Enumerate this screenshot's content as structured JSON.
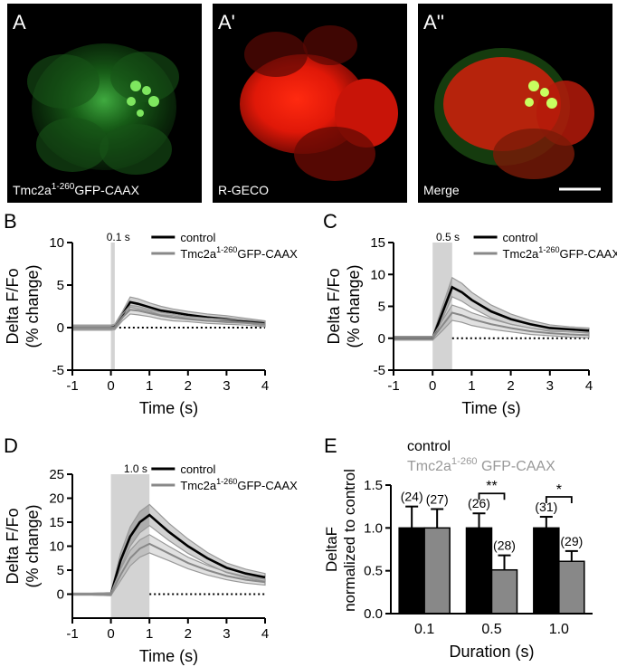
{
  "image_panels": [
    {
      "letter": "A",
      "caption_parts": [
        "Tmc2a",
        "1-260",
        "GFP-CAAX"
      ],
      "channel": "green"
    },
    {
      "letter": "A'",
      "caption_parts": [
        "R-GECO",
        "",
        ""
      ],
      "channel": "red"
    },
    {
      "letter": "A''",
      "caption_parts": [
        "Merge",
        "",
        ""
      ],
      "channel": "merge"
    }
  ],
  "colors": {
    "control": "#000000",
    "mutant": "#888888",
    "stim": "#d3d3d3",
    "green": "#2fb12f",
    "red": "#ff1a0a"
  },
  "common": {
    "ylabel_1": "Delta F/Fo",
    "ylabel_2": "(% change)",
    "xlabel": "Time (s)",
    "legend_control": "control",
    "legend_mutant_prefix": "Tmc2a",
    "legend_mutant_sup": "1-260",
    "legend_mutant_suffix": "GFP-CAAX"
  },
  "chart_data": [
    {
      "panel": "B",
      "type": "line",
      "stim_label": "0.1 s",
      "stim": [
        0,
        0.1
      ],
      "xlim": [
        -1,
        4
      ],
      "ylim": [
        -5,
        10
      ],
      "xticks": [
        "-1",
        "0",
        "1",
        "2",
        "3",
        "4"
      ],
      "yticks": [
        "-5",
        "0",
        "5",
        "10"
      ],
      "x": [
        -1,
        -0.5,
        0,
        0.1,
        0.3,
        0.5,
        0.7,
        1.0,
        1.3,
        1.6,
        2.0,
        2.5,
        3.0,
        3.5,
        4.0
      ],
      "series": [
        {
          "name": "control",
          "values": [
            0,
            0,
            0,
            0.1,
            1.5,
            3.0,
            2.8,
            2.4,
            2.0,
            1.8,
            1.5,
            1.2,
            1.0,
            0.8,
            0.5
          ],
          "sem": [
            0.3,
            0.3,
            0.3,
            0.3,
            0.4,
            0.6,
            0.6,
            0.5,
            0.5,
            0.4,
            0.4,
            0.4,
            0.4,
            0.3,
            0.3
          ]
        },
        {
          "name": "Tmc2a1-260GFP-CAAX",
          "values": [
            0,
            0,
            0,
            0.05,
            1.2,
            2.1,
            2.0,
            1.7,
            1.4,
            1.2,
            1.0,
            0.8,
            0.7,
            0.6,
            0.4
          ],
          "sem": [
            0.3,
            0.3,
            0.3,
            0.3,
            0.4,
            0.5,
            0.5,
            0.4,
            0.4,
            0.4,
            0.3,
            0.3,
            0.3,
            0.3,
            0.3
          ]
        }
      ]
    },
    {
      "panel": "C",
      "type": "line",
      "stim_label": "0.5 s",
      "stim": [
        0,
        0.5
      ],
      "xlim": [
        -1,
        4
      ],
      "ylim": [
        -5,
        15
      ],
      "xticks": [
        "-1",
        "0",
        "1",
        "2",
        "3",
        "4"
      ],
      "yticks": [
        "-5",
        "0",
        "5",
        "10",
        "15"
      ],
      "x": [
        -1,
        -0.5,
        0,
        0.25,
        0.5,
        0.75,
        1.0,
        1.5,
        2.0,
        2.5,
        3.0,
        3.5,
        4.0
      ],
      "series": [
        {
          "name": "control",
          "values": [
            0,
            0,
            0,
            4.0,
            8.0,
            7.2,
            6.0,
            4.2,
            3.0,
            2.2,
            1.6,
            1.4,
            1.2
          ],
          "sem": [
            0.3,
            0.3,
            0.3,
            1.0,
            1.5,
            1.4,
            1.2,
            1.0,
            0.8,
            0.6,
            0.5,
            0.4,
            0.4
          ]
        },
        {
          "name": "Tmc2a1-260GFP-CAAX",
          "values": [
            0,
            0,
            0,
            2.0,
            4.0,
            3.6,
            3.0,
            2.2,
            1.6,
            1.1,
            0.8,
            0.6,
            0.5
          ],
          "sem": [
            0.3,
            0.3,
            0.3,
            0.8,
            1.2,
            1.1,
            1.0,
            0.8,
            0.6,
            0.5,
            0.4,
            0.4,
            0.4
          ]
        }
      ]
    },
    {
      "panel": "D",
      "type": "line",
      "stim_label": "1.0 s",
      "stim": [
        0,
        1.0
      ],
      "xlim": [
        -1,
        4
      ],
      "ylim": [
        -5,
        25
      ],
      "xticks": [
        "-1",
        "0",
        "1",
        "2",
        "3",
        "4"
      ],
      "yticks": [
        "0",
        "5",
        "10",
        "15",
        "20",
        "25"
      ],
      "x": [
        -1,
        -0.5,
        0,
        0.25,
        0.5,
        0.75,
        1.0,
        1.5,
        2.0,
        2.5,
        3.0,
        3.5,
        4.0
      ],
      "series": [
        {
          "name": "control",
          "values": [
            0,
            0,
            0,
            7.0,
            12.0,
            15.0,
            16.5,
            13.0,
            10.0,
            7.5,
            5.5,
            4.3,
            3.5
          ],
          "sem": [
            0.2,
            0.2,
            0.3,
            1.5,
            2.0,
            2.2,
            2.2,
            1.8,
            1.5,
            1.2,
            1.0,
            0.9,
            0.8
          ]
        },
        {
          "name": "Tmc2a1-260GFP-CAAX",
          "values": [
            0,
            0,
            0,
            4.0,
            7.5,
            9.5,
            10.5,
            8.5,
            6.5,
            5.0,
            3.8,
            3.0,
            2.5
          ],
          "sem": [
            0.2,
            0.2,
            0.3,
            1.2,
            1.6,
            1.8,
            1.9,
            1.5,
            1.2,
            1.0,
            0.8,
            0.7,
            0.6
          ]
        }
      ]
    },
    {
      "panel": "E",
      "type": "bar",
      "ylabel_1": "DeltaF",
      "ylabel_2": "normalized to control",
      "xlabel": "Duration (s)",
      "categories": [
        "0.1",
        "0.5",
        "1.0"
      ],
      "ylim": [
        0,
        1.5
      ],
      "yticks": [
        "0.0",
        "0.5",
        "1.0",
        "1.5"
      ],
      "series": [
        {
          "name": "control",
          "values": [
            1.0,
            1.0,
            1.0
          ],
          "err": [
            0.25,
            0.17,
            0.13
          ],
          "n": [
            "(24)",
            "(26)",
            "(31)"
          ]
        },
        {
          "name": "Tmc2a1-260 GFP-CAAX",
          "values": [
            1.0,
            0.51,
            0.61
          ],
          "err": [
            0.22,
            0.17,
            0.12
          ],
          "n": [
            "(27)",
            "(28)",
            "(29)"
          ]
        }
      ],
      "significance": [
        {
          "category": "0.5",
          "label": "**"
        },
        {
          "category": "1.0",
          "label": "*"
        }
      ],
      "legend_control": "control",
      "legend_mutant_prefix": "Tmc2a",
      "legend_mutant_sup": "1-260",
      "legend_mutant_suffix": " GFP-CAAX"
    }
  ]
}
